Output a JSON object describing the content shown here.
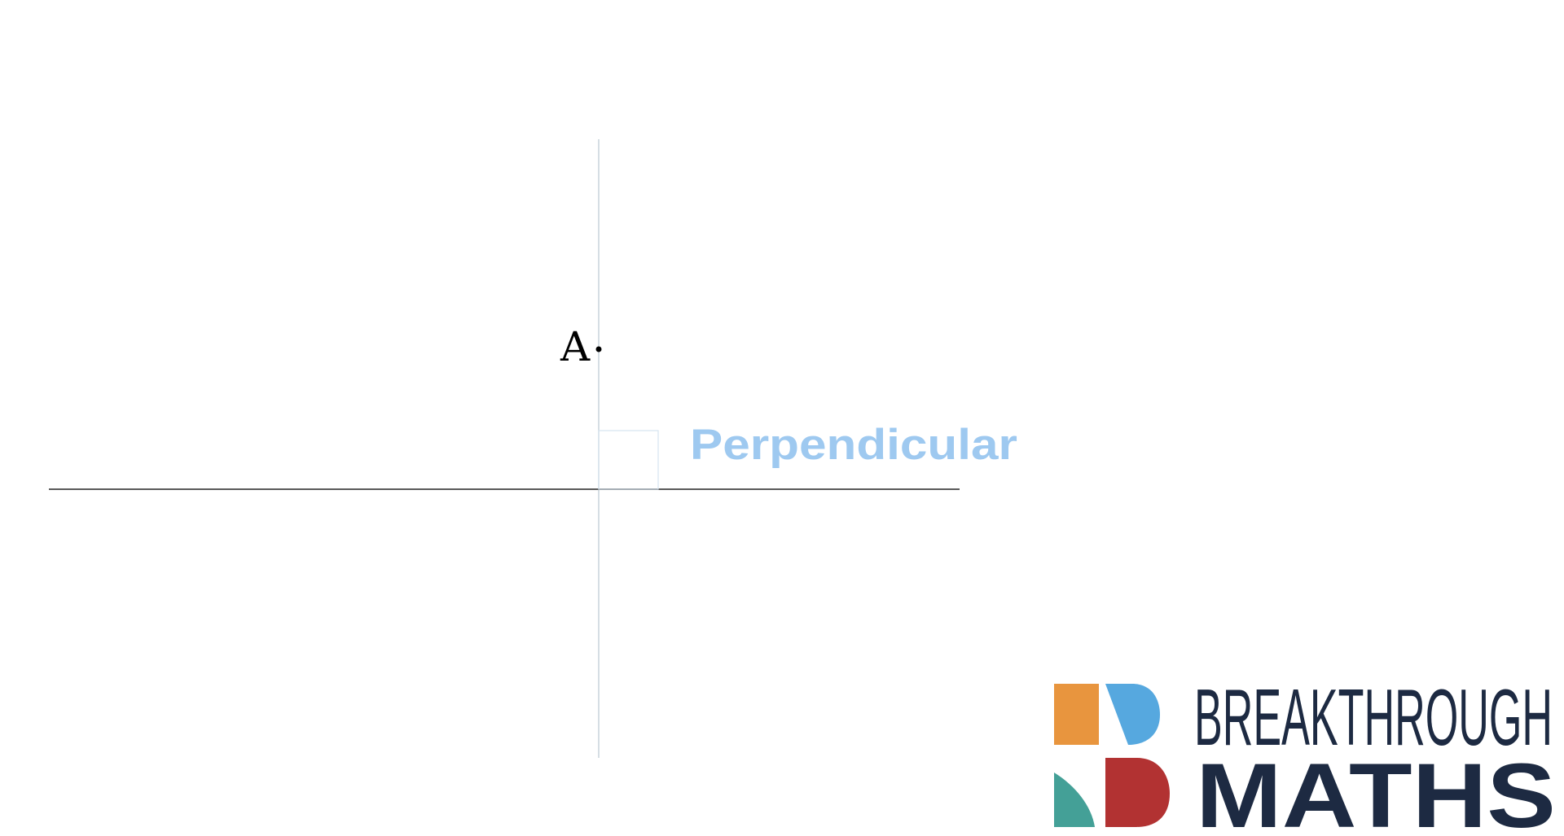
{
  "diagram": {
    "point_label": "A",
    "annotation": "Perpendicular",
    "colors": {
      "line": "#5a5a5a",
      "perpendicular_line": "#c9d3dc",
      "annotation": "#9ec9f0",
      "point": "#000000"
    }
  },
  "logo": {
    "line1": "BREAKTHROUGH",
    "line2": "MATHS",
    "colors": {
      "orange": "#e8953e",
      "blue": "#56a8df",
      "teal": "#44a097",
      "red": "#b23232",
      "text": "#1d2a42"
    }
  }
}
